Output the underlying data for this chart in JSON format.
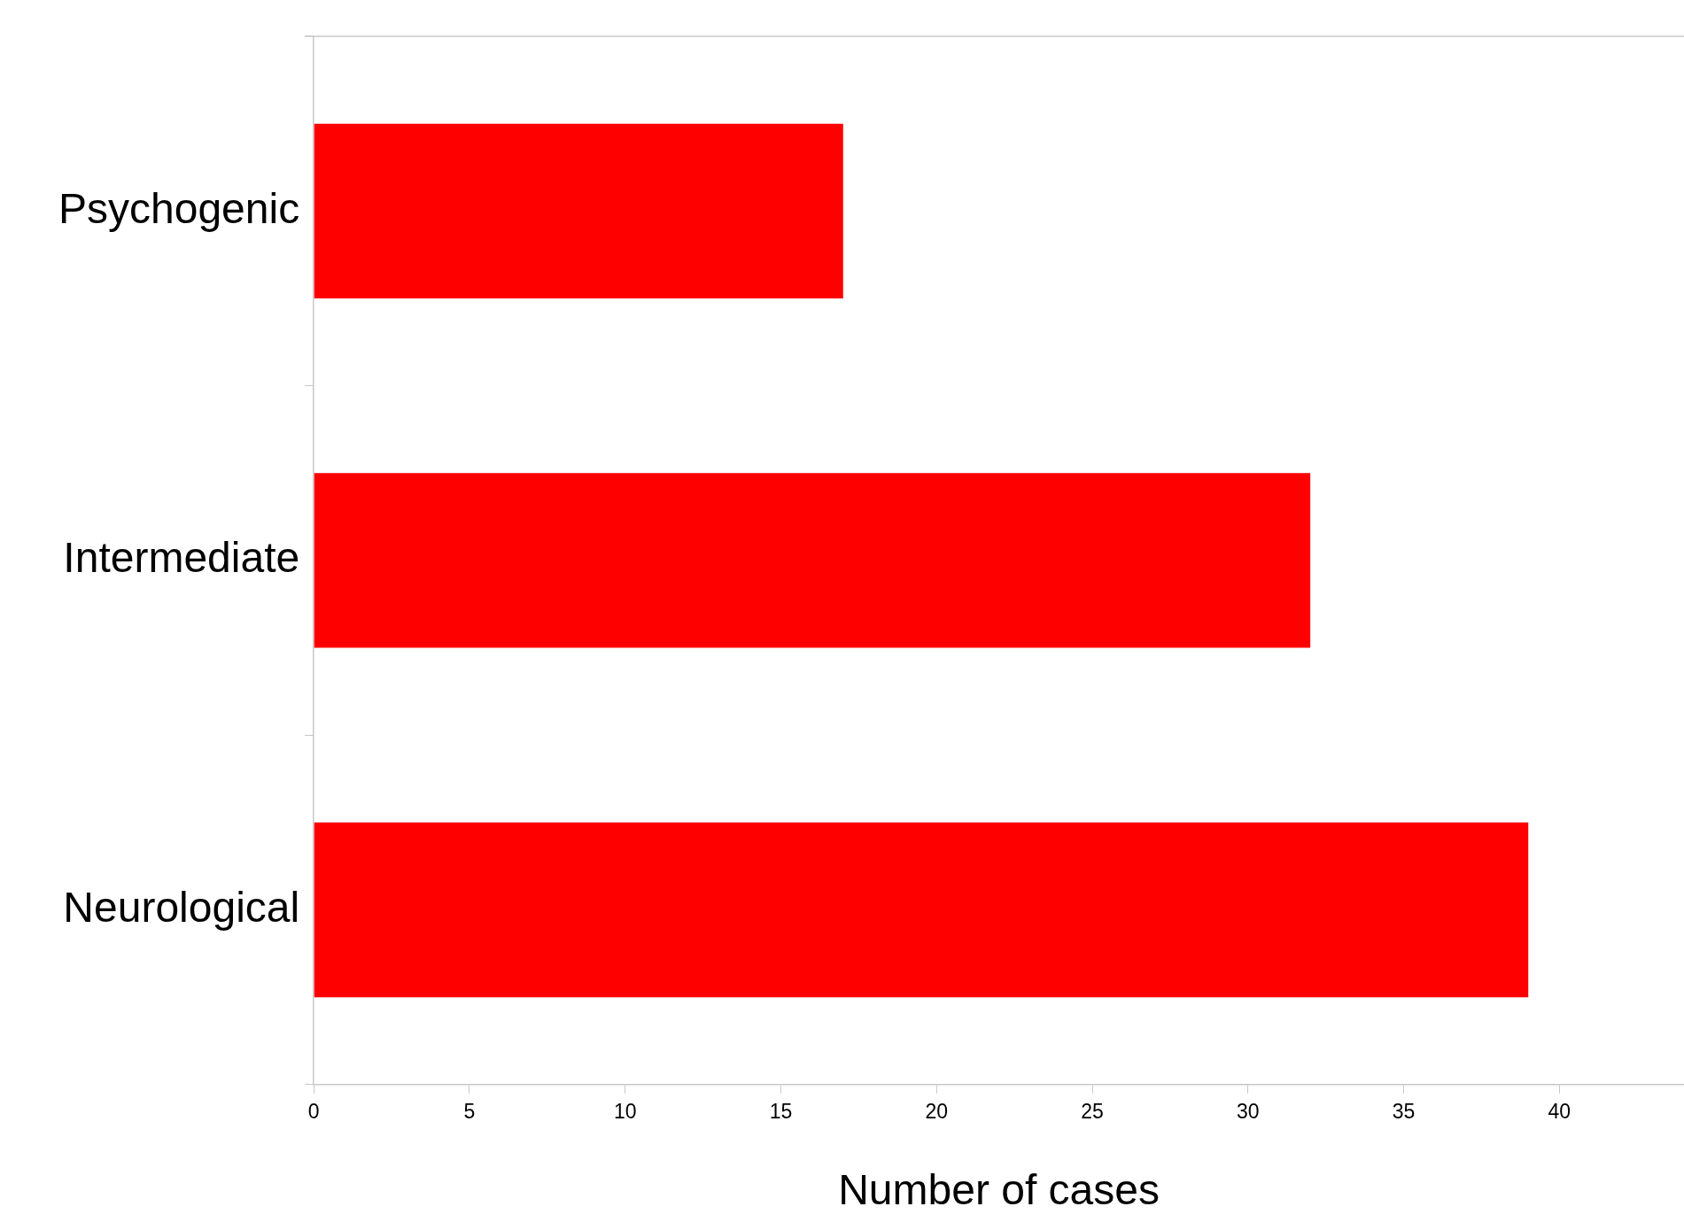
{
  "chart_data": {
    "type": "bar",
    "orientation": "horizontal",
    "xlabel": "Number of cases",
    "categories": [
      "Psychogenic",
      "Intermediate",
      "Neurological"
    ],
    "values": [
      17,
      32,
      39
    ],
    "color": "#ff0000",
    "xlim": [
      0,
      44
    ],
    "xticks": [
      0,
      5,
      10,
      15,
      20,
      25,
      30,
      35,
      40
    ],
    "grid": false,
    "legend": false
  }
}
